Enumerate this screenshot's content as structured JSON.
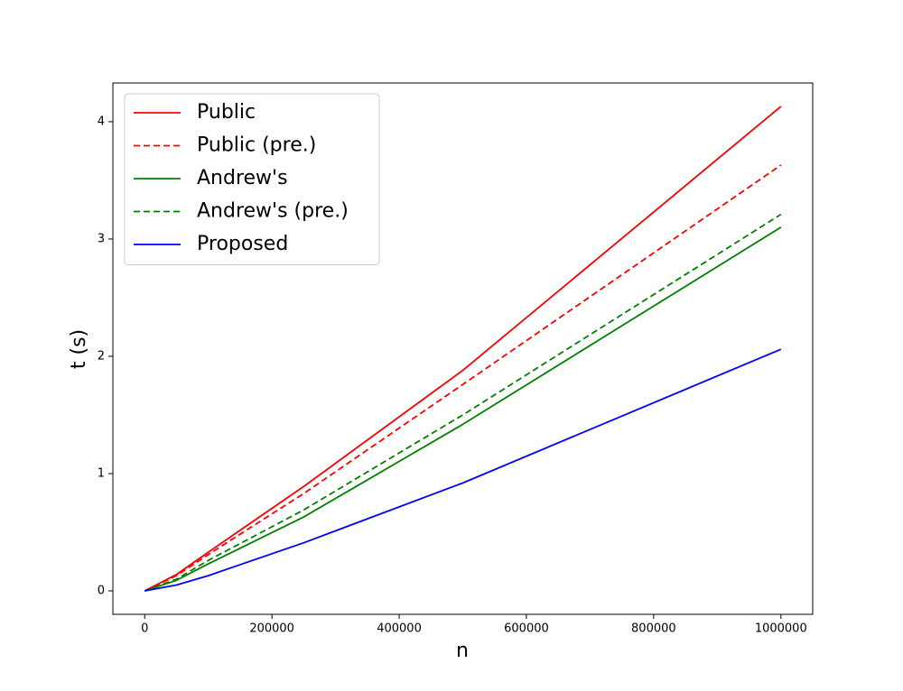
{
  "chart_data": {
    "type": "line",
    "x_label": "n",
    "y_label": "t (s)",
    "x": [
      0,
      50000,
      100000,
      250000,
      500000,
      1000000
    ],
    "series": [
      {
        "name": "Public",
        "color": "#ff0000",
        "linestyle": "solid",
        "values": [
          0,
          0.14,
          0.33,
          0.89,
          1.88,
          4.13
        ]
      },
      {
        "name": "Public (pre.)",
        "color": "#ff0000",
        "linestyle": "dashed",
        "values": [
          0,
          0.13,
          0.31,
          0.83,
          1.76,
          3.63
        ]
      },
      {
        "name": "Andrew's",
        "color": "#008000",
        "linestyle": "solid",
        "values": [
          0,
          0.09,
          0.23,
          0.63,
          1.42,
          3.1
        ]
      },
      {
        "name": "Andrew's (pre.)",
        "color": "#008000",
        "linestyle": "dashed",
        "values": [
          0,
          0.1,
          0.26,
          0.69,
          1.5,
          3.21
        ]
      },
      {
        "name": "Proposed",
        "color": "#0000ff",
        "linestyle": "solid",
        "values": [
          0,
          0.05,
          0.13,
          0.41,
          0.92,
          2.06
        ]
      }
    ],
    "xlim": [
      -50000,
      1050000
    ],
    "ylim": [
      -0.2,
      4.33
    ],
    "xticks": [
      0,
      200000,
      400000,
      600000,
      800000,
      1000000
    ],
    "yticks": [
      0,
      1,
      2,
      3,
      4
    ],
    "legend": "upper left",
    "grid": false
  }
}
